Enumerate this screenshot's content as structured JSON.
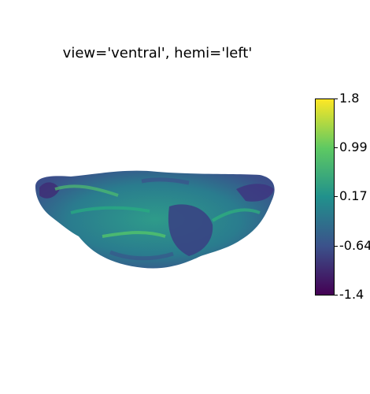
{
  "title": "view='ventral', hemi='left'",
  "colorbar": {
    "ticks": [
      "1.8",
      "0.99",
      "0.17",
      "-0.64",
      "-1.4"
    ],
    "colormap": "viridis"
  }
}
